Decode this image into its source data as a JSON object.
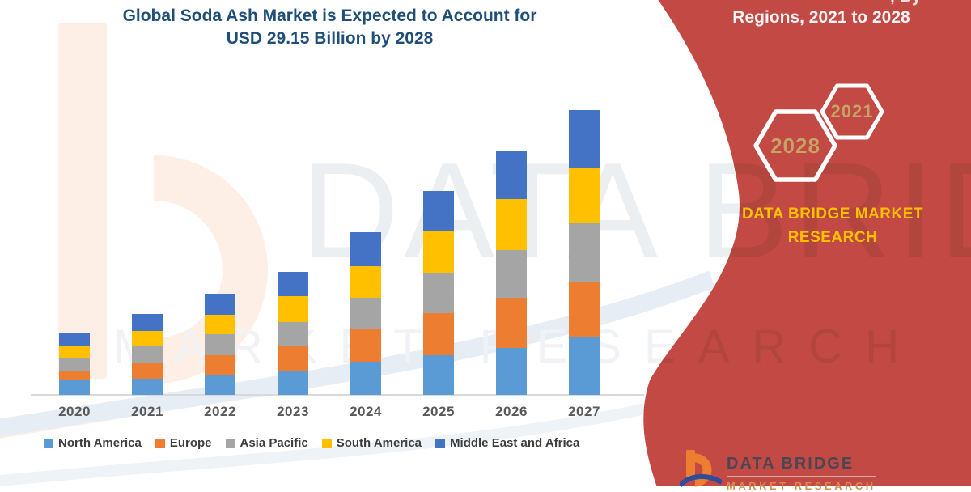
{
  "title": {
    "line1": "Global Soda Ash Market is Expected to Account for",
    "line2": "USD 29.15 Billion by 2028"
  },
  "panel": {
    "top_fragment": ", By",
    "heading": "Regions, 2021 to 2028",
    "hexagons": [
      {
        "year": "2028"
      },
      {
        "year": "2021"
      }
    ],
    "brand_line1": "DATA BRIDGE MARKET",
    "brand_line2": "RESEARCH",
    "colors": {
      "panel_red": "#C24944",
      "hexagon_border": "#FFFFFF",
      "hexagon_text": "#C5A465",
      "brand_yellow": "#FFC000",
      "heading_white": "#FDF5F4"
    }
  },
  "footer_logo": {
    "name": "DATA BRIDGE",
    "subline": "MARKET RESEARCH"
  },
  "watermarks": {
    "big_text": "DATA BRIDGE",
    "row_text": "MARKET RESEARCH"
  },
  "chart_data": {
    "type": "bar",
    "stacked": true,
    "title": "",
    "xlabel": "",
    "ylabel": "",
    "value_unit": "relative height (no value axis shown in figure)",
    "axis_values_shown": false,
    "grid": false,
    "legend_position": "bottom",
    "categories": [
      "2020",
      "2021",
      "2022",
      "2023",
      "2024",
      "2025",
      "2026",
      "2027"
    ],
    "series": [
      {
        "name": "North America",
        "color": "#5B9BD5",
        "values": [
          19,
          20,
          24,
          29,
          41,
          49,
          58,
          72
        ]
      },
      {
        "name": "Europe",
        "color": "#ED7D31",
        "values": [
          11,
          19,
          25,
          31,
          41,
          52,
          62,
          68
        ]
      },
      {
        "name": "Asia Pacific",
        "color": "#A5A5A5",
        "values": [
          16,
          21,
          26,
          30,
          38,
          50,
          59,
          72
        ]
      },
      {
        "name": "South America",
        "color": "#FFC000",
        "values": [
          15,
          19,
          24,
          32,
          39,
          52,
          63,
          69
        ]
      },
      {
        "name": "Middle East and Africa",
        "color": "#4472C4",
        "values": [
          16,
          21,
          26,
          30,
          42,
          49,
          59,
          71
        ]
      }
    ],
    "totals": [
      77,
      100,
      125,
      152,
      201,
      252,
      301,
      352
    ]
  }
}
